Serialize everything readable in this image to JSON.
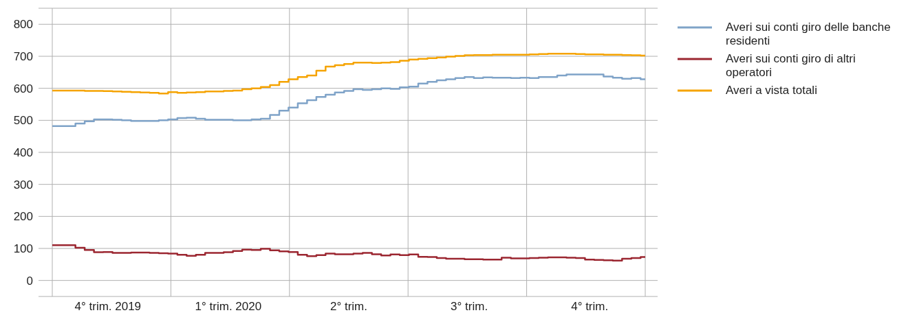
{
  "chart_data": {
    "type": "step",
    "categories": [
      null,
      null,
      null,
      null,
      null,
      null,
      "4° trim. 2019",
      null,
      null,
      null,
      null,
      null,
      null,
      null,
      null,
      null,
      null,
      null,
      null,
      "1° trim. 2020",
      null,
      null,
      null,
      null,
      null,
      null,
      null,
      null,
      null,
      null,
      null,
      null,
      "2° trim.",
      null,
      null,
      null,
      null,
      null,
      null,
      null,
      null,
      null,
      null,
      null,
      null,
      "3° trim.",
      null,
      null,
      null,
      null,
      null,
      null,
      null,
      null,
      null,
      null,
      null,
      null,
      "4° trim.",
      null,
      null,
      null,
      null,
      null,
      null
    ],
    "series": [
      {
        "name": "Averi sui conti giro delle banche residenti",
        "color": "#7fa3c8",
        "values": [
          482,
          482,
          482,
          490,
          497,
          503,
          503,
          502,
          500,
          498,
          498,
          498,
          500,
          503,
          507,
          508,
          505,
          502,
          502,
          502,
          500,
          500,
          503,
          505,
          517,
          530,
          540,
          553,
          563,
          573,
          580,
          587,
          592,
          597,
          595,
          597,
          600,
          598,
          603,
          605,
          615,
          620,
          625,
          628,
          632,
          635,
          632,
          634,
          633,
          633,
          632,
          633,
          632,
          635,
          635,
          640,
          643,
          643,
          643,
          643,
          637,
          633,
          630,
          632,
          628
        ]
      },
      {
        "name": "Averi sui conti giro di altri operatori",
        "color": "#9b2630",
        "values": [
          110,
          110,
          110,
          102,
          95,
          88,
          89,
          86,
          86,
          87,
          87,
          86,
          85,
          84,
          80,
          77,
          80,
          86,
          86,
          88,
          92,
          96,
          95,
          99,
          94,
          91,
          89,
          80,
          76,
          79,
          84,
          82,
          82,
          84,
          86,
          82,
          78,
          81,
          79,
          81,
          74,
          73,
          70,
          68,
          68,
          66,
          66,
          65,
          65,
          71,
          69,
          69,
          70,
          71,
          72,
          72,
          71,
          70,
          65,
          64,
          63,
          62,
          68,
          70,
          73
        ]
      },
      {
        "name": "Averi a vista totali",
        "color": "#f5a300",
        "values": [
          593,
          593,
          593,
          593,
          592,
          592,
          591,
          590,
          589,
          588,
          587,
          586,
          584,
          588,
          586,
          587,
          588,
          590,
          590,
          592,
          593,
          597,
          600,
          604,
          610,
          620,
          628,
          635,
          640,
          655,
          668,
          672,
          676,
          680,
          680,
          679,
          680,
          682,
          686,
          690,
          692,
          694,
          696,
          699,
          701,
          703,
          704,
          704,
          705,
          705,
          705,
          705,
          706,
          707,
          708,
          708,
          708,
          707,
          706,
          706,
          705,
          705,
          704,
          703,
          702
        ]
      }
    ],
    "ylim": [
      -50,
      850
    ],
    "yticks": [
      0,
      100,
      200,
      300,
      400,
      500,
      600,
      700,
      800
    ],
    "grid": true,
    "legend": "top right"
  }
}
